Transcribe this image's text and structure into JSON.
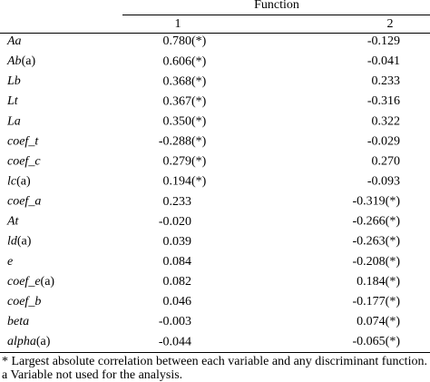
{
  "table": {
    "header": {
      "group": "Function",
      "columns": [
        "1",
        "2"
      ]
    },
    "rows": [
      {
        "variable": "Aa",
        "note": null,
        "f1": "0.780",
        "f1_sig": "(*)",
        "f2": "-0.129",
        "f2_sig": null
      },
      {
        "variable": "Ab",
        "note": "(a)",
        "f1": "0.606",
        "f1_sig": "(*)",
        "f2": "-0.041",
        "f2_sig": null
      },
      {
        "variable": "Lb",
        "note": null,
        "f1": "0.368",
        "f1_sig": "(*)",
        "f2": "0.233",
        "f2_sig": null
      },
      {
        "variable": "Lt",
        "note": null,
        "f1": "0.367",
        "f1_sig": "(*)",
        "f2": "-0.316",
        "f2_sig": null
      },
      {
        "variable": "La",
        "note": null,
        "f1": "0.350",
        "f1_sig": "(*)",
        "f2": "0.322",
        "f2_sig": null
      },
      {
        "variable": "coef_t",
        "note": null,
        "f1": "-0.288",
        "f1_sig": "(*)",
        "f2": "-0.029",
        "f2_sig": null
      },
      {
        "variable": "coef_c",
        "note": null,
        "f1": "0.279",
        "f1_sig": "(*)",
        "f2": "0.270",
        "f2_sig": null
      },
      {
        "variable": "lc",
        "note": "(a)",
        "f1": "0.194",
        "f1_sig": "(*)",
        "f2": "-0.093",
        "f2_sig": null
      },
      {
        "variable": "coef_a",
        "note": null,
        "f1": "0.233",
        "f1_sig": null,
        "f2": "-0.319",
        "f2_sig": "(*)"
      },
      {
        "variable": "At",
        "note": null,
        "f1": "-0.020",
        "f1_sig": null,
        "f2": "-0.266",
        "f2_sig": "(*)"
      },
      {
        "variable": "ld",
        "note": "(a)",
        "f1": "0.039",
        "f1_sig": null,
        "f2": "-0.263",
        "f2_sig": "(*)"
      },
      {
        "variable": "e",
        "note": null,
        "f1": "0.084",
        "f1_sig": null,
        "f2": "-0.208",
        "f2_sig": "(*)"
      },
      {
        "variable": "coef_e",
        "note": "(a)",
        "f1": "0.082",
        "f1_sig": null,
        "f2": "0.184",
        "f2_sig": "(*)"
      },
      {
        "variable": "coef_b",
        "note": null,
        "f1": "0.046",
        "f1_sig": null,
        "f2": "-0.177",
        "f2_sig": "(*)"
      },
      {
        "variable": "beta",
        "note": null,
        "f1": "-0.003",
        "f1_sig": null,
        "f2": "0.074",
        "f2_sig": "(*)"
      },
      {
        "variable": "alpha",
        "note": "(a)",
        "f1": "-0.044",
        "f1_sig": null,
        "f2": "-0.065",
        "f2_sig": "(*)"
      }
    ],
    "footnotes": [
      "* Largest absolute correlation between each variable and any discriminant function.",
      "a Variable not used for the analysis."
    ]
  }
}
